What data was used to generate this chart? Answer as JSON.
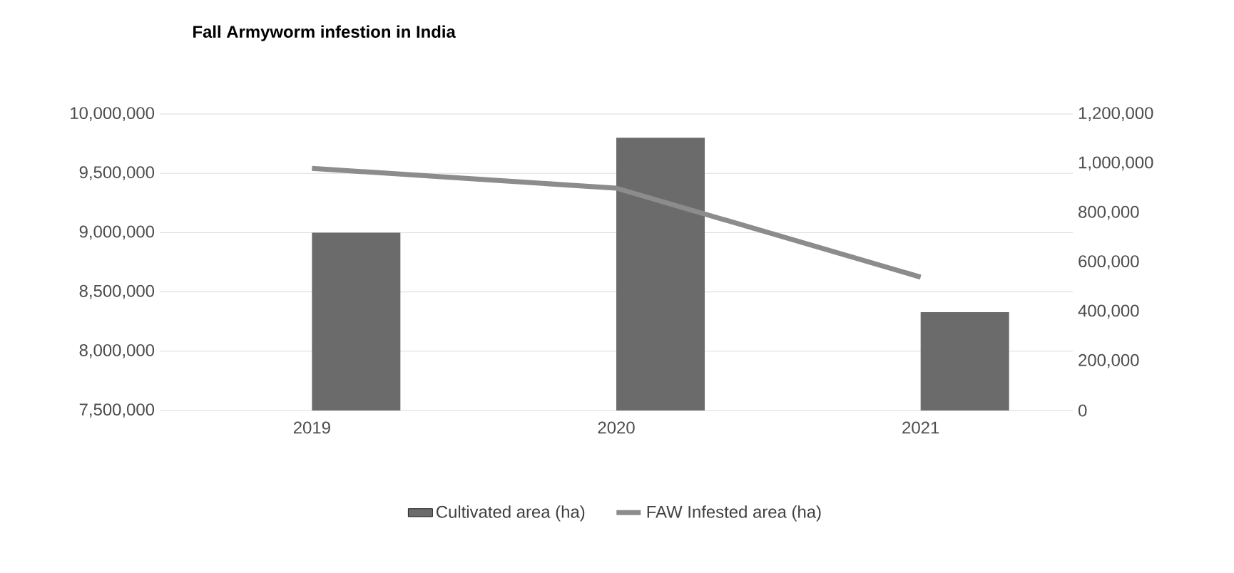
{
  "chart_data": {
    "type": "bar",
    "title": "Fall Armyworm infestion in India",
    "categories": [
      "2019",
      "2020",
      "2021"
    ],
    "series": [
      {
        "name": "Cultivated area (ha)",
        "color": "#6b6b6b",
        "values": [
          9000000,
          9800000,
          8330000
        ]
      },
      {
        "name": "FAW Infested area (ha)",
        "type": "line",
        "axis": "y2",
        "color": "#8c8c8c",
        "values": [
          980000,
          900000,
          540000
        ]
      }
    ],
    "ylim": [
      7500000,
      10000000
    ],
    "yticks": [
      {
        "value": 7500000,
        "label": "7,500,000"
      },
      {
        "value": 8000000,
        "label": "8,000,000"
      },
      {
        "value": 8500000,
        "label": "8,500,000"
      },
      {
        "value": 9000000,
        "label": "9,000,000"
      },
      {
        "value": 9500000,
        "label": "9,500,000"
      },
      {
        "value": 10000000,
        "label": "10,000,000"
      }
    ],
    "y2lim": [
      0,
      1200000
    ],
    "y2ticks": [
      0,
      {
        "value": 200000,
        "label": "200,000"
      },
      {
        "value": 400000,
        "label": "400,000"
      },
      {
        "value": 600000,
        "label": "600,000"
      },
      {
        "value": 800000,
        "label": "800,000"
      },
      {
        "value": 1000000,
        "label": "1,000,000"
      },
      {
        "value": 1200000,
        "label": "1,200,000"
      }
    ],
    "grid": "y",
    "legend": "bottom",
    "marker": "none",
    "line_style": "solid"
  }
}
